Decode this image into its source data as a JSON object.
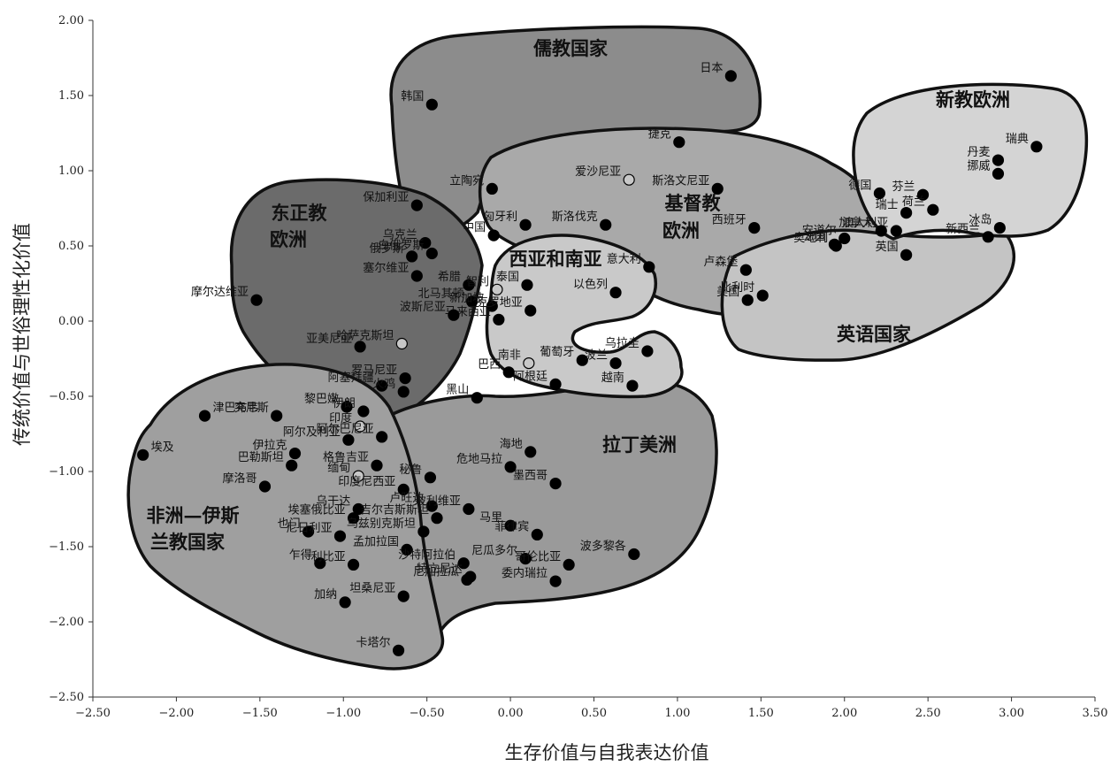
{
  "chart_data": {
    "type": "scatter",
    "title": "",
    "xlabel": "生存价值与自我表达价值",
    "ylabel": "传统价值与世俗理性化价值",
    "xlim": [
      -2.5,
      3.5
    ],
    "ylim": [
      -2.5,
      2.0
    ],
    "xticks": [
      -2.5,
      -2.0,
      -1.5,
      -1.0,
      -0.5,
      0.0,
      0.5,
      1.0,
      1.5,
      2.0,
      2.5,
      3.0,
      3.5
    ],
    "yticks": [
      2.0,
      1.5,
      1.0,
      0.5,
      0.0,
      -0.5,
      -1.0,
      -1.5,
      -2.0,
      -2.5
    ],
    "xtick_labels": [
      "−2.50",
      "−2.00",
      "−1.50",
      "−1.00",
      "−0.50",
      "0.00",
      "0.50",
      "1.00",
      "1.50",
      "2.00",
      "2.50",
      "3.00",
      "3.50"
    ],
    "ytick_labels": [
      "2.00",
      "1.50",
      "1.00",
      "0.50",
      "0.00",
      "−0.50",
      "−1.00",
      "−1.50",
      "−2.00",
      "−2.50"
    ],
    "grid": false,
    "regions": [
      {
        "name": "儒教国家",
        "color": "#8c8c8c"
      },
      {
        "name": "新教欧洲",
        "color": "#d4d4d4"
      },
      {
        "name": "基督教欧洲",
        "color": "#a9a9a9"
      },
      {
        "name": "英语国家",
        "color": "#c4c4c4"
      },
      {
        "name": "东正教欧洲",
        "color": "#6b6b6b"
      },
      {
        "name": "西亚和南亚",
        "color": "#c9c9c9"
      },
      {
        "name": "拉丁美洲",
        "color": "#9a9a9a"
      },
      {
        "name": "非洲—伊斯兰教国家",
        "color": "#9f9f9f"
      }
    ],
    "points": [
      {
        "label": "日本",
        "x": 1.32,
        "y": 1.63
      },
      {
        "label": "韩国",
        "x": -0.47,
        "y": 1.44
      },
      {
        "label": "捷克",
        "x": 1.01,
        "y": 1.19
      },
      {
        "label": "爱沙尼亚",
        "x": 0.71,
        "y": 0.94,
        "hollow": true
      },
      {
        "label": "斯洛文尼亚",
        "x": 1.24,
        "y": 0.88
      },
      {
        "label": "立陶宛",
        "x": -0.11,
        "y": 0.88
      },
      {
        "label": "匈牙利",
        "x": 0.09,
        "y": 0.64
      },
      {
        "label": "斯洛伐克",
        "x": 0.57,
        "y": 0.64
      },
      {
        "label": "西班牙",
        "x": 1.46,
        "y": 0.62
      },
      {
        "label": "中国",
        "x": -0.1,
        "y": 0.57
      },
      {
        "label": "保加利亚",
        "x": -0.56,
        "y": 0.77
      },
      {
        "label": "乌克兰",
        "x": -0.51,
        "y": 0.52
      },
      {
        "label": "俄罗斯",
        "x": -0.59,
        "y": 0.43
      },
      {
        "label": "塞尔维亚",
        "x": -0.56,
        "y": 0.3
      },
      {
        "label": "白俄罗斯",
        "x": -0.47,
        "y": 0.45
      },
      {
        "label": "希腊",
        "x": -0.25,
        "y": 0.24
      },
      {
        "label": "北马其顿",
        "x": -0.23,
        "y": 0.13
      },
      {
        "label": "摩尔达维亚",
        "x": -1.52,
        "y": 0.14
      },
      {
        "label": "意大利",
        "x": 0.83,
        "y": 0.36
      },
      {
        "label": "卢森堡",
        "x": 1.41,
        "y": 0.34
      },
      {
        "label": "智利",
        "x": -0.08,
        "y": 0.21,
        "hollow": true
      },
      {
        "label": "泰国",
        "x": 0.1,
        "y": 0.24
      },
      {
        "label": "以色列",
        "x": 0.63,
        "y": 0.19
      },
      {
        "label": "比利时",
        "x": 1.51,
        "y": 0.17
      },
      {
        "label": "美国",
        "x": 1.42,
        "y": 0.14
      },
      {
        "label": "新加坡",
        "x": -0.11,
        "y": 0.1
      },
      {
        "label": "克罗地亚",
        "x": 0.12,
        "y": 0.07
      },
      {
        "label": "马来西亚",
        "x": -0.07,
        "y": 0.01
      },
      {
        "label": "波斯尼亚",
        "x": -0.34,
        "y": 0.04
      },
      {
        "label": "亚美尼亚",
        "x": -0.9,
        "y": -0.17
      },
      {
        "label": "哈萨克斯坦",
        "x": -0.65,
        "y": -0.15,
        "hollow": true
      },
      {
        "label": "南非",
        "x": 0.11,
        "y": -0.28,
        "hollow": true
      },
      {
        "label": "葡萄牙",
        "x": 0.43,
        "y": -0.26
      },
      {
        "label": "乌拉圭",
        "x": 0.82,
        "y": -0.2
      },
      {
        "label": "波兰",
        "x": 0.63,
        "y": -0.28
      },
      {
        "label": "巴西",
        "x": -0.01,
        "y": -0.34
      },
      {
        "label": "越南",
        "x": 0.73,
        "y": -0.43
      },
      {
        "label": "阿塞拜疆",
        "x": -0.77,
        "y": -0.43
      },
      {
        "label": "罗马尼亚",
        "x": -0.63,
        "y": -0.38
      },
      {
        "label": "阿根廷",
        "x": 0.27,
        "y": -0.42
      },
      {
        "label": "黎巴嫩",
        "x": -0.98,
        "y": -0.57
      },
      {
        "label": "突尼斯",
        "x": -1.4,
        "y": -0.63
      },
      {
        "label": "津巴布韦",
        "x": -1.83,
        "y": -0.63
      },
      {
        "label": "伊朗",
        "x": -0.88,
        "y": -0.6
      },
      {
        "label": "火鸡",
        "x": -0.64,
        "y": -0.47
      },
      {
        "label": "黑山",
        "x": -0.2,
        "y": -0.51
      },
      {
        "label": "印度",
        "x": -0.9,
        "y": -0.7,
        "hollow": true
      },
      {
        "label": "阿尔巴尼亚",
        "x": -0.77,
        "y": -0.77
      },
      {
        "label": "阿尔及利亚",
        "x": -0.97,
        "y": -0.79
      },
      {
        "label": "伊拉克",
        "x": -1.29,
        "y": -0.88
      },
      {
        "label": "巴勒斯坦",
        "x": -1.31,
        "y": -0.96
      },
      {
        "label": "埃及",
        "x": -2.2,
        "y": -0.89
      },
      {
        "label": "格鲁吉亚",
        "x": -0.8,
        "y": -0.96
      },
      {
        "label": "海地",
        "x": 0.12,
        "y": -0.87
      },
      {
        "label": "秘鲁",
        "x": -0.48,
        "y": -1.04
      },
      {
        "label": "缅甸",
        "x": -0.91,
        "y": -1.03,
        "hollow": true
      },
      {
        "label": "危地马拉",
        "x": 0.0,
        "y": -0.97
      },
      {
        "label": "印度尼西亚",
        "x": -0.64,
        "y": -1.12
      },
      {
        "label": "摩洛哥",
        "x": -1.47,
        "y": -1.1
      },
      {
        "label": "卢旺达",
        "x": -0.47,
        "y": -1.23
      },
      {
        "label": "墨西哥",
        "x": 0.27,
        "y": -1.08
      },
      {
        "label": "乌干达",
        "x": -0.91,
        "y": -1.25
      },
      {
        "label": "玻利维亚",
        "x": -0.25,
        "y": -1.25
      },
      {
        "label": "埃塞俄比亚",
        "x": -0.94,
        "y": -1.31
      },
      {
        "label": "吉尔吉斯斯坦",
        "x": -0.44,
        "y": -1.31
      },
      {
        "label": "马里",
        "x": 0.0,
        "y": -1.36
      },
      {
        "label": "也门",
        "x": -1.21,
        "y": -1.4
      },
      {
        "label": "尼日利亚",
        "x": -1.02,
        "y": -1.43
      },
      {
        "label": "菲律宾",
        "x": 0.16,
        "y": -1.42
      },
      {
        "label": "乌兹别克斯坦",
        "x": -0.52,
        "y": -1.4
      },
      {
        "label": "孟加拉国",
        "x": -0.62,
        "y": -1.52
      },
      {
        "label": "乍得",
        "x": -1.14,
        "y": -1.61
      },
      {
        "label": "利比亚",
        "x": -0.94,
        "y": -1.62
      },
      {
        "label": "沙特阿拉伯",
        "x": -0.28,
        "y": -1.61
      },
      {
        "label": "尼瓜多尔",
        "x": 0.09,
        "y": -1.58
      },
      {
        "label": "哥伦比亚",
        "x": 0.35,
        "y": -1.62
      },
      {
        "label": "波多黎各",
        "x": 0.74,
        "y": -1.55
      },
      {
        "label": "加纳",
        "x": -0.99,
        "y": -1.87
      },
      {
        "label": "坦桑尼亚",
        "x": -0.64,
        "y": -1.83
      },
      {
        "label": "尼加拉瓜",
        "x": -0.26,
        "y": -1.72
      },
      {
        "label": "特立尼达",
        "x": -0.24,
        "y": -1.7
      },
      {
        "label": "委内瑞拉",
        "x": 0.27,
        "y": -1.73
      },
      {
        "label": "卡塔尔",
        "x": -0.67,
        "y": -2.19
      },
      {
        "label": "德国",
        "x": 2.21,
        "y": 0.85
      },
      {
        "label": "芬兰",
        "x": 2.47,
        "y": 0.84
      },
      {
        "label": "丹麦",
        "x": 2.92,
        "y": 1.07
      },
      {
        "label": "瑞典",
        "x": 3.15,
        "y": 1.16
      },
      {
        "label": "挪威",
        "x": 2.92,
        "y": 0.98
      },
      {
        "label": "荷兰",
        "x": 2.53,
        "y": 0.74
      },
      {
        "label": "瑞士",
        "x": 2.37,
        "y": 0.72
      },
      {
        "label": "安道尔",
        "x": 2.0,
        "y": 0.55
      },
      {
        "label": "奥地利",
        "x": 1.95,
        "y": 0.5
      },
      {
        "label": "法国",
        "x": 1.94,
        "y": 0.51
      },
      {
        "label": "冰岛",
        "x": 2.93,
        "y": 0.62
      },
      {
        "label": "澳大利亚",
        "x": 2.31,
        "y": 0.6
      },
      {
        "label": "新西兰",
        "x": 2.86,
        "y": 0.56
      },
      {
        "label": "英国",
        "x": 2.37,
        "y": 0.44
      },
      {
        "label": "加拿大",
        "x": 2.22,
        "y": 0.6
      }
    ]
  }
}
